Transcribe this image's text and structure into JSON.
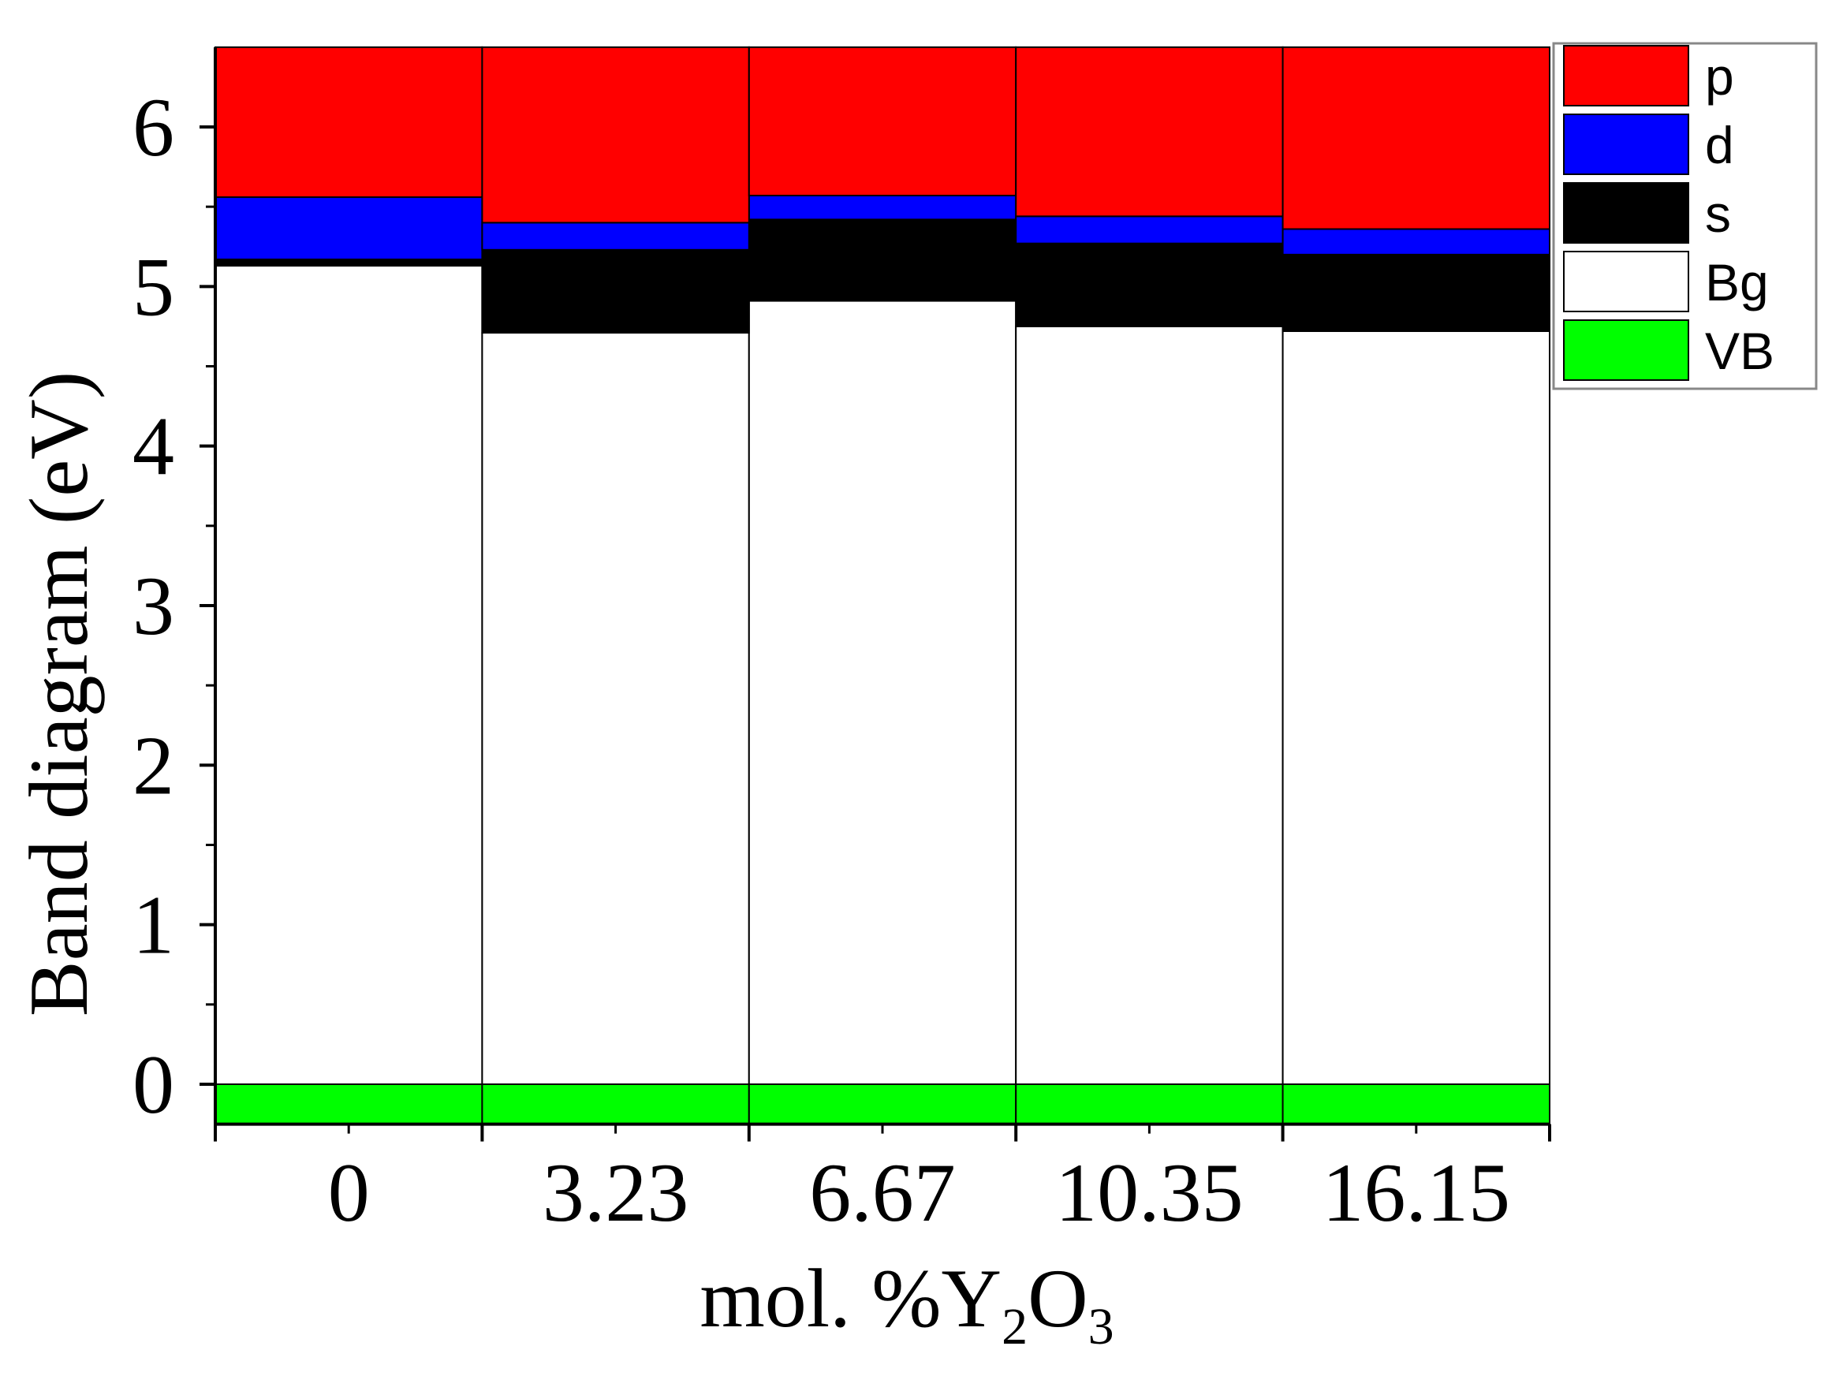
{
  "chart_data": {
    "type": "bar",
    "stacked": true,
    "categories": [
      "0",
      "3.23",
      "6.67",
      "10.35",
      "16.15"
    ],
    "xlabel": {
      "prefix": "mol. %Y",
      "sub1": "2",
      "mid": "O",
      "sub2": "3"
    },
    "ylabel": "Band diagram (eV)",
    "ylim": [
      -0.25,
      6.5
    ],
    "yticks": [
      0,
      1,
      2,
      3,
      4,
      5,
      6
    ],
    "grid": false,
    "legend_position": "right",
    "legend": [
      {
        "label": "p",
        "color": "#ff0000"
      },
      {
        "label": "d",
        "color": "#0000ff"
      },
      {
        "label": "s",
        "color": "#000000"
      },
      {
        "label": "Bg",
        "color": "#ffffff"
      },
      {
        "label": "VB",
        "color": "#00ff00"
      }
    ],
    "series": [
      {
        "name": "VB",
        "color": "#00ff00",
        "ranges": [
          [
            -0.25,
            0
          ],
          [
            -0.25,
            0
          ],
          [
            -0.25,
            0
          ],
          [
            -0.25,
            0
          ],
          [
            -0.25,
            0
          ]
        ]
      },
      {
        "name": "Bg",
        "color": "#ffffff",
        "ranges": [
          [
            0,
            5.13
          ],
          [
            0,
            4.71
          ],
          [
            0,
            4.91
          ],
          [
            0,
            4.75
          ],
          [
            0,
            4.72
          ]
        ]
      },
      {
        "name": "s",
        "color": "#000000",
        "ranges": [
          [
            5.13,
            5.17
          ],
          [
            4.71,
            5.23
          ],
          [
            4.91,
            5.42
          ],
          [
            4.75,
            5.27
          ],
          [
            4.72,
            5.2
          ]
        ]
      },
      {
        "name": "d",
        "color": "#0000ff",
        "ranges": [
          [
            5.17,
            5.56
          ],
          [
            5.23,
            5.4
          ],
          [
            5.42,
            5.57
          ],
          [
            5.27,
            5.44
          ],
          [
            5.2,
            5.36
          ]
        ]
      },
      {
        "name": "p",
        "color": "#ff0000",
        "ranges": [
          [
            5.56,
            6.5
          ],
          [
            5.4,
            6.5
          ],
          [
            5.57,
            6.5
          ],
          [
            5.44,
            6.5
          ],
          [
            5.36,
            6.5
          ]
        ]
      }
    ]
  }
}
